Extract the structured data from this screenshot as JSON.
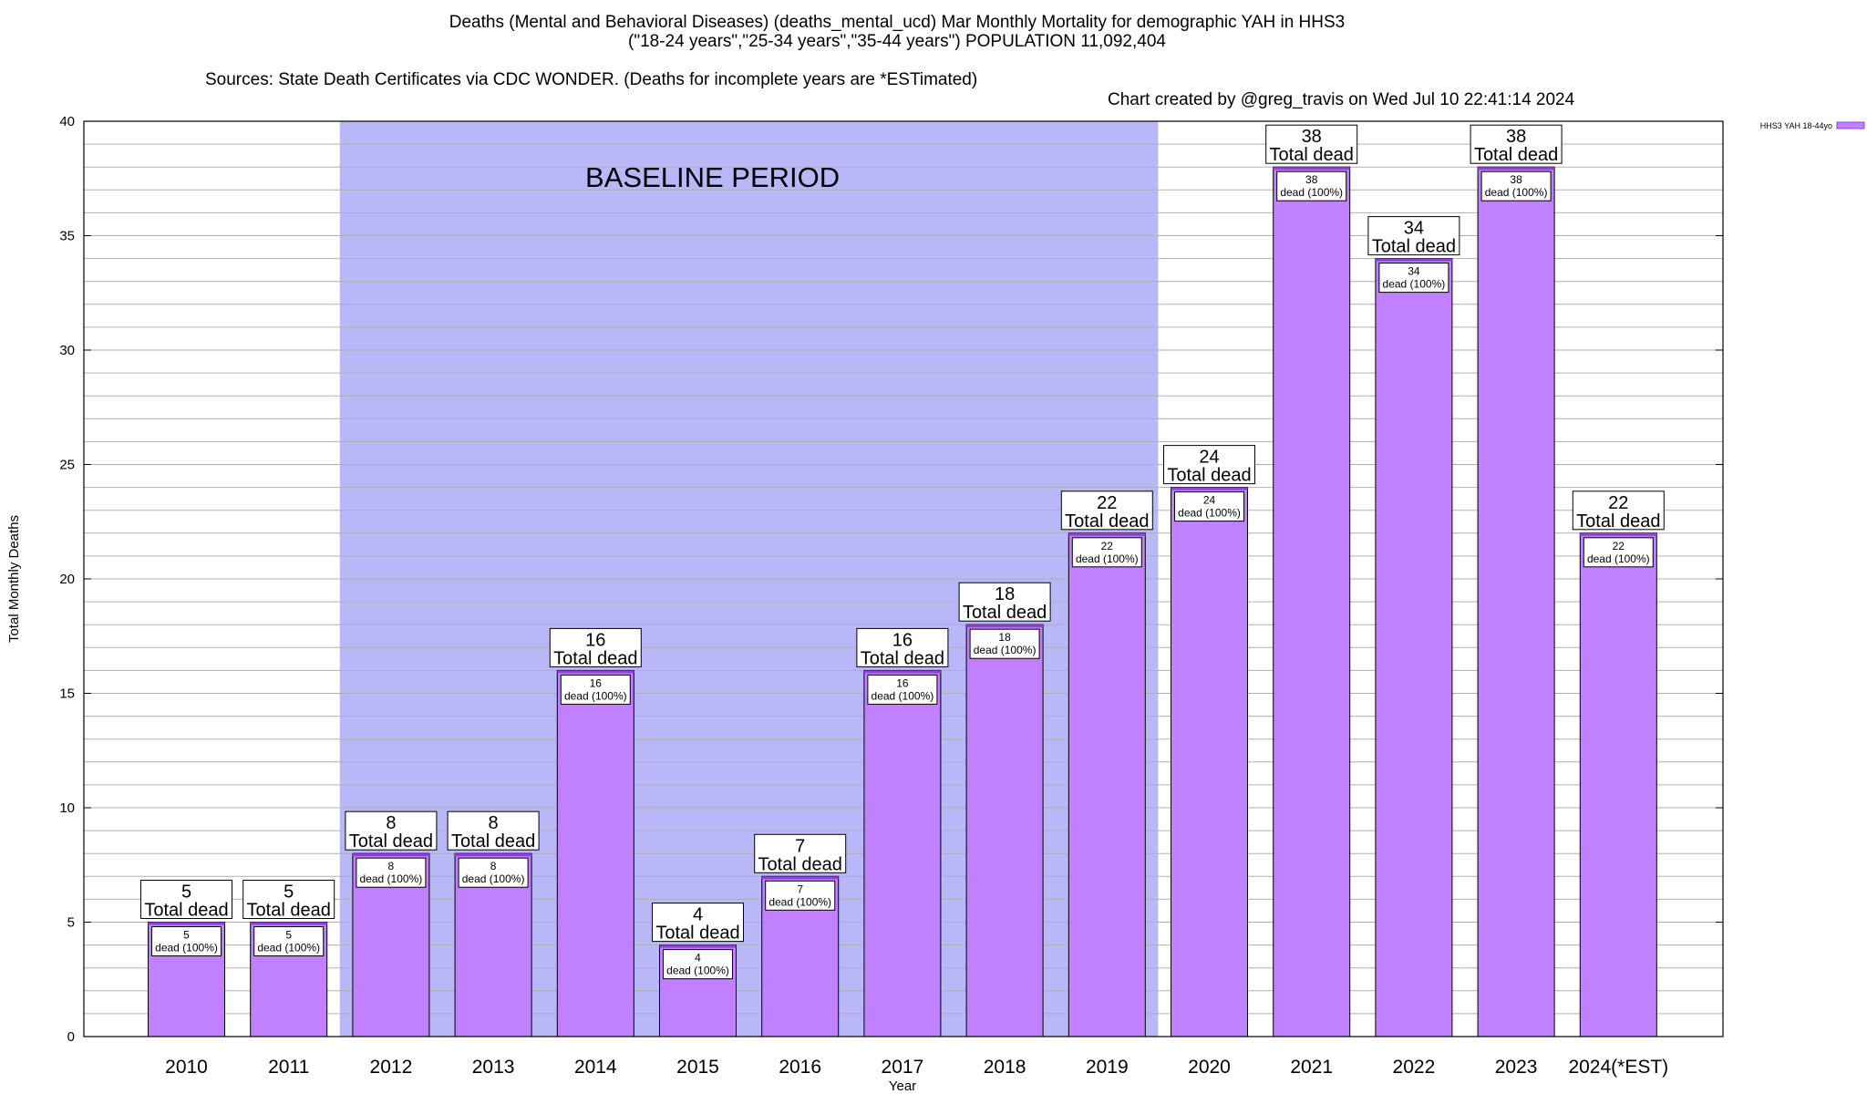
{
  "title": {
    "line1": "Deaths (Mental and Behavioral Diseases) (deaths_mental_ucd) Mar Monthly Mortality for demographic YAH in HHS3",
    "line2": "(\"18-24 years\",\"25-34 years\",\"35-44 years\") POPULATION 11,092,404",
    "sources": "Sources: State Death Certificates via CDC WONDER. (Deaths for incomplete years are *ESTimated)",
    "credit": "Chart created by @greg_travis on Wed Jul 10 22:41:14 2024"
  },
  "chart_data": {
    "type": "bar",
    "categories": [
      "2010",
      "2011",
      "2012",
      "2013",
      "2014",
      "2015",
      "2016",
      "2017",
      "2018",
      "2019",
      "2020",
      "2021",
      "2022",
      "2023",
      "2024(*EST)"
    ],
    "series": [
      {
        "name": "HHS3 YAH 18-44yo",
        "values": [
          5,
          5,
          8,
          8,
          16,
          4,
          7,
          16,
          18,
          22,
          24,
          38,
          34,
          38,
          22
        ]
      }
    ],
    "bar_top_label": "Total dead",
    "bar_inner_label": "dead (100%)",
    "xlabel": "Year",
    "ylabel": "Total Monthly Deaths",
    "ylim": [
      0,
      40
    ],
    "yticks": [
      0,
      5,
      10,
      15,
      20,
      25,
      30,
      35,
      40
    ],
    "minor_grid_step": 1,
    "grid": true,
    "legend_position": "top-right",
    "baseline_period": {
      "label": "BASELINE PERIOD",
      "from": "2012",
      "to": "2019"
    },
    "colors": {
      "bar": "#c080ff",
      "bar_top": "#9040e0",
      "baseline": "#b8b8f8",
      "grid": "#b0b0b0"
    }
  }
}
